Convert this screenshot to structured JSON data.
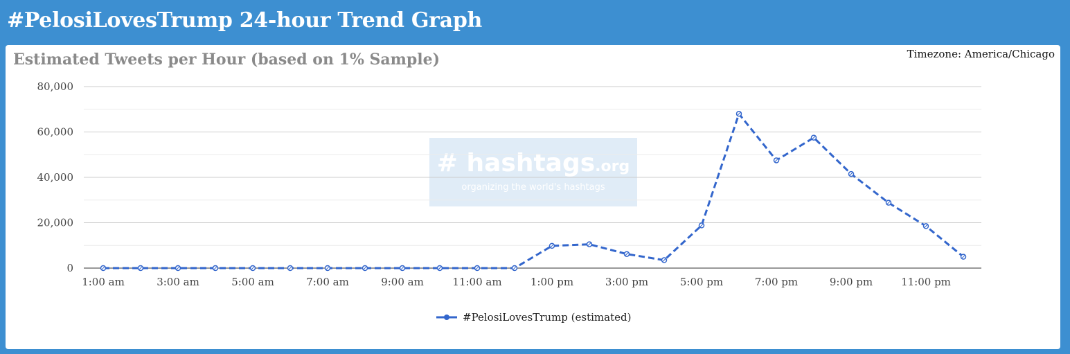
{
  "header": {
    "title": "#PelosiLovesTrump 24-hour Trend Graph"
  },
  "timezone": "Timezone: America/Chicago",
  "watermark": {
    "logo_main": "# hashtags",
    "logo_suffix": ".org",
    "tagline": "organizing the world's hashtags"
  },
  "colors": {
    "series": "#3366cc",
    "header_bg": "#3d8fd1"
  },
  "chart_data": {
    "type": "line",
    "title": "Estimated Tweets per Hour (based on 1% Sample)",
    "xlabel": "",
    "ylabel": "",
    "ylim": [
      0,
      80000
    ],
    "y_ticks": [
      "0",
      "20,000",
      "40,000",
      "60,000",
      "80,000"
    ],
    "y_tick_values": [
      0,
      20000,
      40000,
      60000,
      80000
    ],
    "x_tick_labels": [
      "1:00 am",
      "3:00 am",
      "5:00 am",
      "7:00 am",
      "9:00 am",
      "11:00 am",
      "1:00 pm",
      "3:00 pm",
      "5:00 pm",
      "7:00 pm",
      "9:00 pm",
      "11:00 pm"
    ],
    "x": [
      "1:00 am",
      "2:00 am",
      "3:00 am",
      "4:00 am",
      "5:00 am",
      "6:00 am",
      "7:00 am",
      "8:00 am",
      "9:00 am",
      "10:00 am",
      "11:00 am",
      "12:00 pm",
      "1:00 pm",
      "2:00 pm",
      "3:00 pm",
      "4:00 pm",
      "5:00 pm",
      "6:00 pm",
      "7:00 pm",
      "8:00 pm",
      "9:00 pm",
      "10:00 pm",
      "11:00 pm",
      "12:00 am"
    ],
    "series": [
      {
        "name": "#PelosiLovesTrump (estimated)",
        "values": [
          0,
          0,
          0,
          0,
          0,
          0,
          0,
          0,
          0,
          0,
          0,
          0,
          9800,
          10500,
          6200,
          3500,
          18800,
          68000,
          47500,
          57500,
          41500,
          28800,
          18500,
          5000
        ]
      }
    ],
    "grid": true,
    "legend": "bottom"
  }
}
